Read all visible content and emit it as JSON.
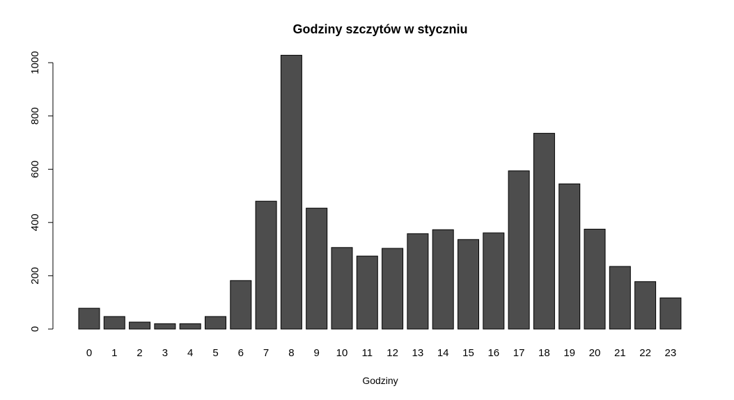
{
  "chart_data": {
    "type": "bar",
    "title": "Godziny szczytów w styczniu",
    "xlabel": "Godziny",
    "ylabel": "",
    "categories": [
      "0",
      "1",
      "2",
      "3",
      "4",
      "5",
      "6",
      "7",
      "8",
      "9",
      "10",
      "11",
      "12",
      "13",
      "14",
      "15",
      "16",
      "17",
      "18",
      "19",
      "20",
      "21",
      "22",
      "23"
    ],
    "values": [
      78,
      47,
      26,
      20,
      20,
      47,
      182,
      480,
      1028,
      454,
      306,
      274,
      303,
      358,
      373,
      336,
      361,
      594,
      735,
      545,
      375,
      235,
      178,
      117
    ],
    "ylim": [
      0,
      1028
    ],
    "yticks": [
      0,
      200,
      400,
      600,
      800,
      1000
    ],
    "bar_color": "#4d4d4d",
    "grid": false,
    "legend": "none"
  }
}
